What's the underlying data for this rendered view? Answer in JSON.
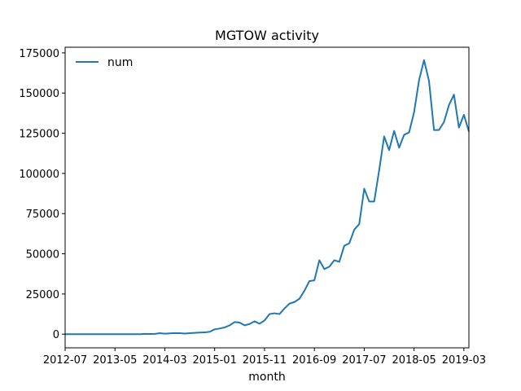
{
  "chart_data": {
    "type": "line",
    "title": "MGTOW activity",
    "xlabel": "month",
    "ylabel": "",
    "grid": false,
    "legend_position": "upper left",
    "x_start": "2012-07",
    "x_end": "2019-04",
    "xticks": [
      "2012-07",
      "2013-05",
      "2014-03",
      "2015-01",
      "2015-11",
      "2016-09",
      "2017-07",
      "2018-05",
      "2019-03"
    ],
    "ylim": [
      -8500,
      178500
    ],
    "yticks": [
      0,
      25000,
      50000,
      75000,
      100000,
      125000,
      150000,
      175000
    ],
    "ytick_labels": [
      "0",
      "25000",
      "50000",
      "75000",
      "100000",
      "125000",
      "150000",
      "175000"
    ],
    "series": [
      {
        "name": "num",
        "color": "#1f77b4",
        "x": [
          "2012-07",
          "2012-08",
          "2012-09",
          "2012-10",
          "2012-11",
          "2012-12",
          "2013-01",
          "2013-02",
          "2013-03",
          "2013-04",
          "2013-05",
          "2013-06",
          "2013-07",
          "2013-08",
          "2013-09",
          "2013-10",
          "2013-11",
          "2013-12",
          "2014-01",
          "2014-02",
          "2014-03",
          "2014-04",
          "2014-05",
          "2014-06",
          "2014-07",
          "2014-08",
          "2014-09",
          "2014-10",
          "2014-11",
          "2014-12",
          "2015-01",
          "2015-02",
          "2015-03",
          "2015-04",
          "2015-05",
          "2015-06",
          "2015-07",
          "2015-08",
          "2015-09",
          "2015-10",
          "2015-11",
          "2015-12",
          "2016-01",
          "2016-02",
          "2016-03",
          "2016-04",
          "2016-05",
          "2016-06",
          "2016-07",
          "2016-08",
          "2016-09",
          "2016-10",
          "2016-11",
          "2016-12",
          "2017-01",
          "2017-02",
          "2017-03",
          "2017-04",
          "2017-05",
          "2017-06",
          "2017-07",
          "2017-08",
          "2017-09",
          "2017-10",
          "2017-11",
          "2017-12",
          "2018-01",
          "2018-02",
          "2018-03",
          "2018-04",
          "2018-05",
          "2018-06",
          "2018-07",
          "2018-08",
          "2018-09",
          "2018-10",
          "2018-11",
          "2018-12",
          "2019-01",
          "2019-02",
          "2019-03",
          "2019-04"
        ],
        "values": [
          0,
          0,
          0,
          0,
          0,
          0,
          0,
          0,
          0,
          0,
          0,
          0,
          0,
          0,
          0,
          0,
          200,
          100,
          200,
          600,
          300,
          500,
          700,
          600,
          400,
          600,
          800,
          1000,
          1100,
          1500,
          3000,
          3500,
          4200,
          5500,
          7500,
          7200,
          5500,
          6300,
          8000,
          6500,
          8500,
          12500,
          13000,
          12500,
          16000,
          19000,
          20000,
          22000,
          27000,
          33000,
          33500,
          46000,
          40500,
          42000,
          46000,
          45000,
          55000,
          56500,
          65000,
          68500,
          90500,
          82500,
          82500,
          102000,
          123000,
          114500,
          126500,
          116000,
          124000,
          125500,
          138000,
          158000,
          170500,
          157500,
          127000,
          127000,
          132000,
          142500,
          149000,
          128500,
          136500,
          126000
        ]
      }
    ]
  }
}
